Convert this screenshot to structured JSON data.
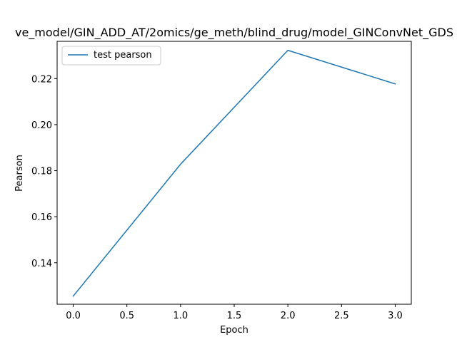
{
  "chart_data": {
    "type": "line",
    "title": "ve_model/GIN_ADD_AT/2omics/ge_meth/blind_drug/model_GINConvNet_GDS",
    "xlabel": "Epoch",
    "ylabel": "Pearson",
    "x": [
      0,
      1,
      2,
      3
    ],
    "series": [
      {
        "name": "test pearson",
        "values": [
          0.1255,
          0.1828,
          0.2323,
          0.2177
        ],
        "color": "#1f77b4"
      }
    ],
    "xlim": [
      -0.15,
      3.15
    ],
    "ylim": [
      0.12197,
      0.2362
    ],
    "xticks": [
      0.0,
      0.5,
      1.0,
      1.5,
      2.0,
      2.5,
      3.0
    ],
    "xtick_labels": [
      "0.0",
      "0.5",
      "1.0",
      "1.5",
      "2.0",
      "2.5",
      "3.0"
    ],
    "yticks": [
      0.14,
      0.16,
      0.18,
      0.2,
      0.22
    ],
    "ytick_labels": [
      "0.14",
      "0.16",
      "0.18",
      "0.20",
      "0.22"
    ],
    "grid": false,
    "legend_position": "upper left"
  }
}
